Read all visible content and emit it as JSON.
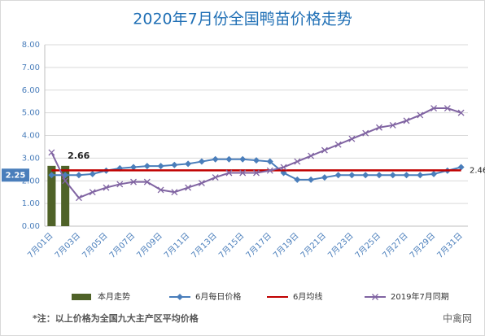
{
  "chart_data": {
    "type": "combo",
    "title": "2020年7月份全国鸭苗价格走势",
    "categories": [
      "7月01日",
      null,
      "7月03日",
      null,
      "7月05日",
      null,
      "7月07日",
      null,
      "7月09日",
      null,
      "7月11日",
      null,
      "7月13日",
      null,
      "7月15日",
      null,
      "7月17日",
      null,
      "7月19日",
      null,
      "7月21日",
      null,
      "7月23日",
      null,
      "7月25日",
      null,
      "7月27日",
      null,
      "7月29日",
      null,
      "7月31日"
    ],
    "ylim": [
      0,
      8
    ],
    "yticks": [
      {
        "value": 0,
        "label": "0.00"
      },
      {
        "value": 1,
        "label": "1.00"
      },
      {
        "value": 2,
        "label": "2.00"
      },
      {
        "value": 3,
        "label": "3.00"
      },
      {
        "value": 4,
        "label": "4.00"
      },
      {
        "value": 5,
        "label": "5.00"
      },
      {
        "value": 6,
        "label": "6.00"
      },
      {
        "value": 7,
        "label": "7.00"
      },
      {
        "value": 8,
        "label": "8.00"
      }
    ],
    "grid": true,
    "series": [
      {
        "name": "本月走势",
        "kind": "bar",
        "color": "#4f6228",
        "values": [
          2.66,
          2.66,
          null,
          null,
          null,
          null,
          null,
          null,
          null,
          null,
          null,
          null,
          null,
          null,
          null,
          null,
          null,
          null,
          null,
          null,
          null,
          null,
          null,
          null,
          null,
          null,
          null,
          null,
          null,
          null,
          null
        ]
      },
      {
        "name": "6月每日价格",
        "kind": "line",
        "marker": "diamond",
        "color": "#4a7ebb",
        "values": [
          2.25,
          2.25,
          2.25,
          2.3,
          2.45,
          2.55,
          2.6,
          2.65,
          2.65,
          2.7,
          2.75,
          2.85,
          2.95,
          2.95,
          2.95,
          2.9,
          2.85,
          2.35,
          2.05,
          2.05,
          2.15,
          2.25,
          2.25,
          2.25,
          2.25,
          2.25,
          2.25,
          2.25,
          2.3,
          2.45,
          2.6
        ]
      },
      {
        "name": "6月均线",
        "kind": "line",
        "marker": "none",
        "color": "#c00000",
        "values": [
          2.46,
          2.46,
          2.46,
          2.46,
          2.46,
          2.46,
          2.46,
          2.46,
          2.46,
          2.46,
          2.46,
          2.46,
          2.46,
          2.46,
          2.46,
          2.46,
          2.46,
          2.46,
          2.46,
          2.46,
          2.46,
          2.46,
          2.46,
          2.46,
          2.46,
          2.46,
          2.46,
          2.46,
          2.46,
          2.46,
          2.46
        ]
      },
      {
        "name": "2019年7月同期",
        "kind": "line",
        "marker": "x",
        "color": "#8064a2",
        "values": [
          3.25,
          2.0,
          1.25,
          1.5,
          1.7,
          1.85,
          1.95,
          1.95,
          1.6,
          1.5,
          1.7,
          1.9,
          2.15,
          2.35,
          2.35,
          2.35,
          2.45,
          2.6,
          2.85,
          3.1,
          3.35,
          3.6,
          3.85,
          4.1,
          4.35,
          4.45,
          4.65,
          4.9,
          5.2,
          5.2,
          5.0
        ]
      }
    ],
    "note": "*注：以上价格为全国九大主产区平均价格",
    "watermark": "中禽网"
  }
}
